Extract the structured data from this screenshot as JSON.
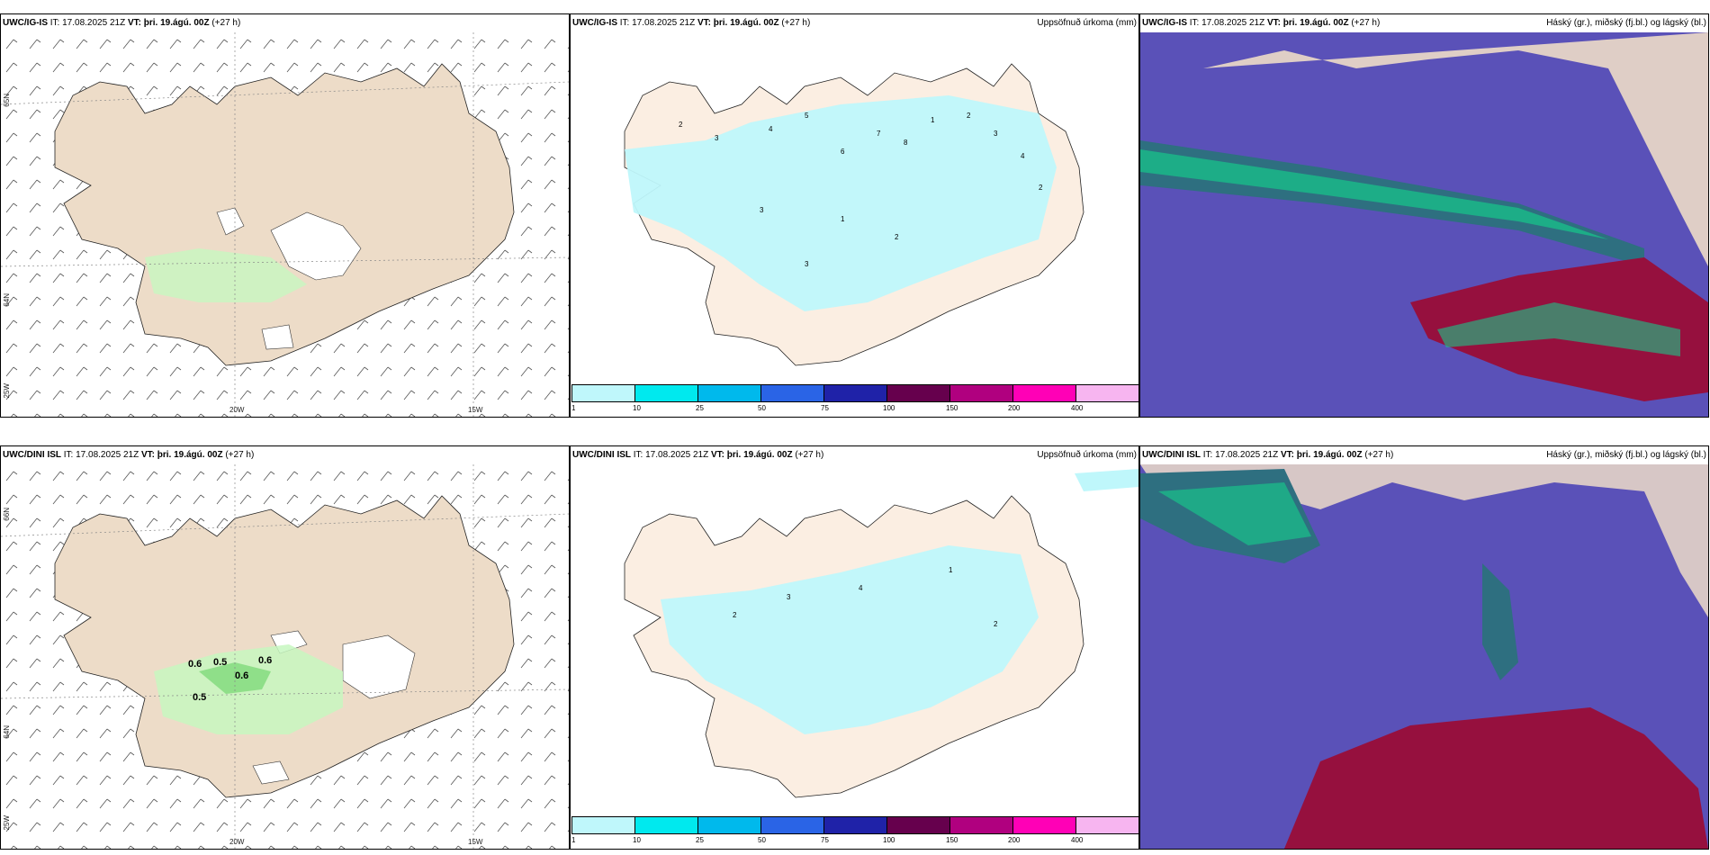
{
  "rows": [
    {
      "model": "UWC/IG-IS",
      "it_label": "IT:",
      "it_value": "17.08.2025 21Z",
      "vt_label": "VT:",
      "vt_value": "þri. 19.ágú. 00Z",
      "lead": "(+27 h)"
    },
    {
      "model": "UWC/DINI ISL",
      "it_label": "IT:",
      "it_value": "17.08.2025 21Z",
      "vt_label": "VT:",
      "vt_value": "þri. 19.ágú. 00Z",
      "lead": "(+27 h)"
    }
  ],
  "titles": {
    "precip": "Uppsöfnuð úrkoma (mm)",
    "clouds": "Háský (gr.), miðský (fj.bl.) og lágský (bl.)"
  },
  "axis_labels": {
    "lon_20w": "20W",
    "lon_15w": "15W",
    "lat_65n": "65N",
    "lat_64n": "64N",
    "lat_66n": "66N",
    "lat_25w": "25W"
  },
  "legend": {
    "ticks": [
      "1",
      "10",
      "25",
      "50",
      "75",
      "100",
      "150",
      "200",
      "400"
    ],
    "colors": [
      "#bff7fb",
      "#00e9ee",
      "#00b9ec",
      "#2a64e6",
      "#1f22a8",
      "#66004d",
      "#b0007f",
      "#ff00b6",
      "#f7b5f0"
    ]
  },
  "colors": {
    "land": "#eddcc8",
    "land_light": "#fbeee2",
    "precip_light": "#bff7fb",
    "green_precip": "#c7f7c0",
    "cloud_low": "#5a51b8",
    "cloud_mid": "#2e6f80",
    "cloud_mid_bright": "#17c88a",
    "cloud_high": "#96103e"
  },
  "annotations_top": [
    "2",
    "3",
    "4",
    "5",
    "6",
    "7",
    "8",
    "1",
    "2",
    "3",
    "4",
    "2",
    "3",
    "1",
    "2",
    "3"
  ],
  "annotations_bottom": [
    "0.6",
    "0.5",
    "0.6",
    "0.6",
    "0.5",
    "2",
    "3",
    "4",
    "1",
    "2"
  ]
}
